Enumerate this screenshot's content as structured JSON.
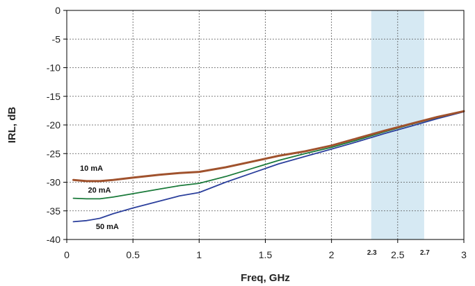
{
  "chart_data": {
    "type": "line",
    "xlabel": "Freq, GHz",
    "ylabel": "IRL, dB",
    "xlim": [
      0,
      3
    ],
    "ylim": [
      -40,
      0
    ],
    "x_ticks": [
      "0",
      "0.5",
      "1",
      "1.5",
      "2",
      "2.5",
      "3"
    ],
    "x_ticks_small": [
      "2.3",
      "2.7"
    ],
    "y_ticks": [
      "0",
      "-5",
      "-10",
      "-15",
      "-20",
      "-25",
      "-30",
      "-35",
      "-40"
    ],
    "grid": true,
    "highlight_band": {
      "x_start": 2.3,
      "x_end": 2.7,
      "color": "#d6e9f3"
    },
    "series": [
      {
        "name": "10 mA",
        "color": "#a0522d",
        "x": [
          0.05,
          0.15,
          0.25,
          0.35,
          0.5,
          0.7,
          0.85,
          1.0,
          1.2,
          1.4,
          1.6,
          1.8,
          2.0,
          2.2,
          2.4,
          2.6,
          2.8,
          3.0
        ],
        "y": [
          -29.6,
          -29.8,
          -29.8,
          -29.6,
          -29.2,
          -28.7,
          -28.4,
          -28.2,
          -27.4,
          -26.4,
          -25.4,
          -24.6,
          -23.6,
          -22.3,
          -21.0,
          -19.8,
          -18.6,
          -17.6
        ]
      },
      {
        "name": "20 mA",
        "color": "#1a7a3a",
        "x": [
          0.05,
          0.15,
          0.25,
          0.35,
          0.5,
          0.7,
          0.85,
          1.0,
          1.2,
          1.4,
          1.6,
          1.8,
          2.0,
          2.2,
          2.4,
          2.6,
          2.8,
          3.0
        ],
        "y": [
          -32.8,
          -32.9,
          -32.9,
          -32.6,
          -32.0,
          -31.2,
          -30.6,
          -30.2,
          -29.0,
          -27.6,
          -26.2,
          -25.0,
          -23.9,
          -22.6,
          -21.2,
          -19.9,
          -18.7,
          -17.6
        ]
      },
      {
        "name": "50 mA",
        "color": "#2b3f9c",
        "x": [
          0.05,
          0.15,
          0.25,
          0.35,
          0.5,
          0.7,
          0.85,
          1.0,
          1.2,
          1.4,
          1.6,
          1.8,
          2.0,
          2.2,
          2.4,
          2.6,
          2.8,
          3.0
        ],
        "y": [
          -36.9,
          -36.7,
          -36.3,
          -35.5,
          -34.5,
          -33.3,
          -32.4,
          -31.8,
          -30.0,
          -28.4,
          -26.8,
          -25.5,
          -24.2,
          -22.9,
          -21.5,
          -20.2,
          -18.9,
          -17.7
        ]
      }
    ],
    "series_labels": [
      {
        "text": "10 mA",
        "x": 0.1,
        "y": -28.0
      },
      {
        "text": "20 mA",
        "x": 0.16,
        "y": -31.8
      },
      {
        "text": "50 mA",
        "x": 0.22,
        "y": -38.2
      }
    ]
  }
}
